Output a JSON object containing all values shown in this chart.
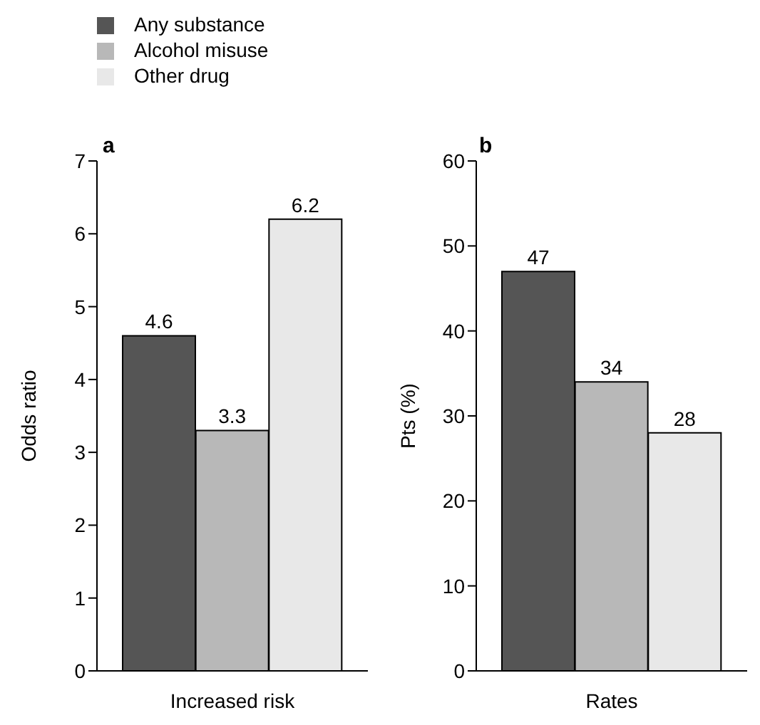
{
  "chart_data": [
    {
      "type": "bar",
      "title": "a",
      "ylabel": "Odds ratio",
      "xlabel": "Increased risk",
      "categories": [
        null,
        null,
        null
      ],
      "stacked": true,
      "series": [
        {
          "name": "Any substance",
          "color": "#555555",
          "values": [
            4.6,
            null,
            null
          ]
        },
        {
          "name": "Alcohol misuse",
          "color": "#b8b8b8",
          "values": [
            null,
            3.3,
            null
          ]
        },
        {
          "name": "Other drug",
          "color": "#e8e8e8",
          "values": [
            null,
            null,
            6.2
          ]
        }
      ],
      "ylim": [
        0,
        7
      ],
      "yticks": [
        0,
        1,
        2,
        3,
        4,
        5,
        6,
        7
      ],
      "data_labels": true,
      "grid": false,
      "legend": "top left"
    },
    {
      "type": "bar",
      "title": "b",
      "ylabel": "Pts (%)",
      "xlabel": "Rates",
      "categories": [
        null,
        null,
        null
      ],
      "stacked": true,
      "series": [
        {
          "color": "#555555",
          "values": [
            47,
            null,
            null
          ]
        },
        {
          "color": "#b8b8b8",
          "values": [
            null,
            34,
            null
          ]
        },
        {
          "color": "#e8e8e8",
          "values": [
            null,
            null,
            28
          ]
        }
      ],
      "ylim": [
        0,
        60
      ],
      "yticks": [
        0,
        10,
        20,
        30,
        40,
        50,
        60
      ],
      "data_labels": true,
      "grid": false
    }
  ]
}
